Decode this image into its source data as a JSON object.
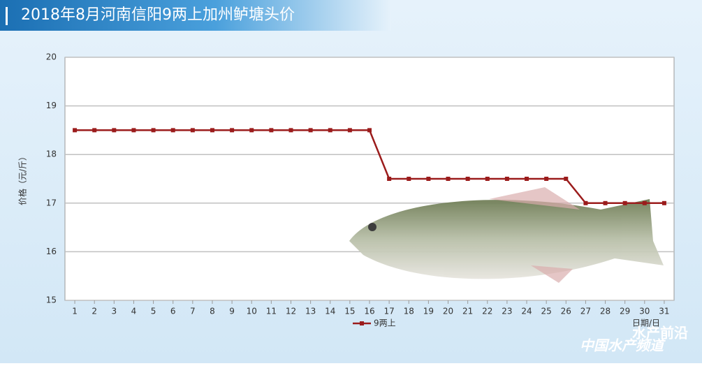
{
  "chart_data": {
    "type": "line",
    "title": "2018年8月河南信阳9两上加州鲈塘头价",
    "y_label": "价格（元/斤）",
    "x_label": "日期/日",
    "x": [
      1,
      2,
      3,
      4,
      5,
      6,
      7,
      8,
      9,
      10,
      11,
      12,
      13,
      14,
      15,
      16,
      17,
      18,
      19,
      20,
      21,
      22,
      23,
      24,
      25,
      26,
      27,
      28,
      29,
      30,
      31
    ],
    "series": [
      {
        "name": "9两上",
        "color": "#9b1c1c",
        "values": [
          18.5,
          18.5,
          18.5,
          18.5,
          18.5,
          18.5,
          18.5,
          18.5,
          18.5,
          18.5,
          18.5,
          18.5,
          18.5,
          18.5,
          18.5,
          18.5,
          17.5,
          17.5,
          17.5,
          17.5,
          17.5,
          17.5,
          17.5,
          17.5,
          17.5,
          17.5,
          17,
          17,
          17,
          17,
          17
        ]
      }
    ],
    "xlim": [
      0.5,
      31.5
    ],
    "ylim": [
      15,
      20
    ],
    "yticks": [
      15,
      16,
      17,
      18,
      19,
      20
    ],
    "grid": true,
    "watermark": [
      "水产前沿",
      "中国水产频道"
    ]
  }
}
